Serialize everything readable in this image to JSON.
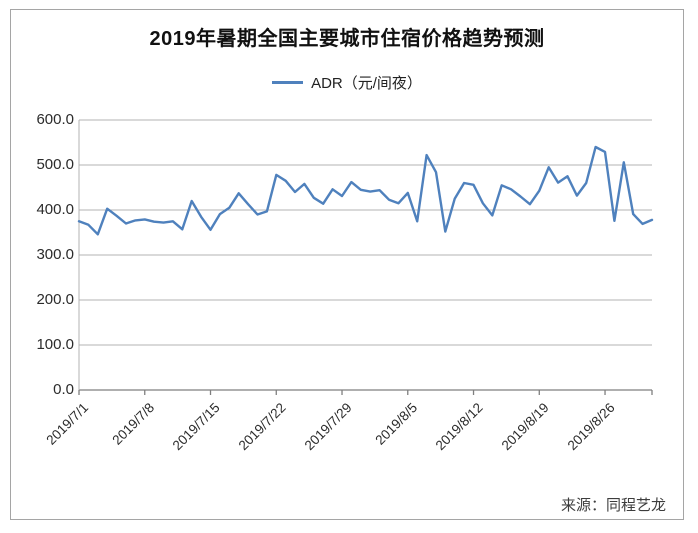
{
  "chart_data": {
    "type": "line",
    "title": "2019年暑期全国主要城市住宿价格趋势预测",
    "legend": {
      "label": "ADR（元/间夜）",
      "position": "top-center"
    },
    "source": "来源：同程艺龙",
    "xlabel": "",
    "ylabel": "",
    "ylim": [
      0,
      600
    ],
    "grid": "horizontal",
    "y_ticks": [
      600,
      500,
      400,
      300,
      200,
      100,
      0
    ],
    "y_tick_labels": [
      "600.0",
      "500.0",
      "400.0",
      "300.0",
      "200.0",
      "100.0",
      "0.0"
    ],
    "x_tick_labels": [
      "2019/7/1",
      "2019/7/8",
      "2019/7/15",
      "2019/7/22",
      "2019/7/29",
      "2019/8/5",
      "2019/8/12",
      "2019/8/19",
      "2019/8/26"
    ],
    "x_tick_indices": [
      0,
      7,
      14,
      21,
      28,
      35,
      42,
      49,
      56
    ],
    "x": [
      "2019/7/1",
      "2019/7/2",
      "2019/7/3",
      "2019/7/4",
      "2019/7/5",
      "2019/7/6",
      "2019/7/7",
      "2019/7/8",
      "2019/7/9",
      "2019/7/10",
      "2019/7/11",
      "2019/7/12",
      "2019/7/13",
      "2019/7/14",
      "2019/7/15",
      "2019/7/16",
      "2019/7/17",
      "2019/7/18",
      "2019/7/19",
      "2019/7/20",
      "2019/7/21",
      "2019/7/22",
      "2019/7/23",
      "2019/7/24",
      "2019/7/25",
      "2019/7/26",
      "2019/7/27",
      "2019/7/28",
      "2019/7/29",
      "2019/7/30",
      "2019/7/31",
      "2019/8/1",
      "2019/8/2",
      "2019/8/3",
      "2019/8/4",
      "2019/8/5",
      "2019/8/6",
      "2019/8/7",
      "2019/8/8",
      "2019/8/9",
      "2019/8/10",
      "2019/8/11",
      "2019/8/12",
      "2019/8/13",
      "2019/8/14",
      "2019/8/15",
      "2019/8/16",
      "2019/8/17",
      "2019/8/18",
      "2019/8/19",
      "2019/8/20",
      "2019/8/21",
      "2019/8/22",
      "2019/8/23",
      "2019/8/24",
      "2019/8/25",
      "2019/8/26",
      "2019/8/27",
      "2019/8/28",
      "2019/8/29",
      "2019/8/30",
      "2019/8/31"
    ],
    "series": [
      {
        "name": "ADR（元/间夜）",
        "values": [
          375,
          367,
          346,
          403,
          387,
          370,
          377,
          379,
          374,
          372,
          375,
          357,
          420,
          385,
          356,
          391,
          405,
          437,
          413,
          390,
          397,
          478,
          465,
          440,
          458,
          427,
          414,
          446,
          431,
          462,
          445,
          441,
          444,
          423,
          415,
          438,
          375,
          522,
          484,
          352,
          425,
          460,
          456,
          415,
          388,
          455,
          446,
          430,
          413,
          443,
          495,
          461,
          475,
          432,
          460,
          540,
          529,
          376,
          506,
          391,
          369,
          378
        ]
      }
    ],
    "colors": {
      "line": "#4f81bd",
      "grid": "#b3b3b3",
      "axis": "#7f7f7f",
      "frame": "#a5a5a5",
      "text": "#222222"
    }
  }
}
